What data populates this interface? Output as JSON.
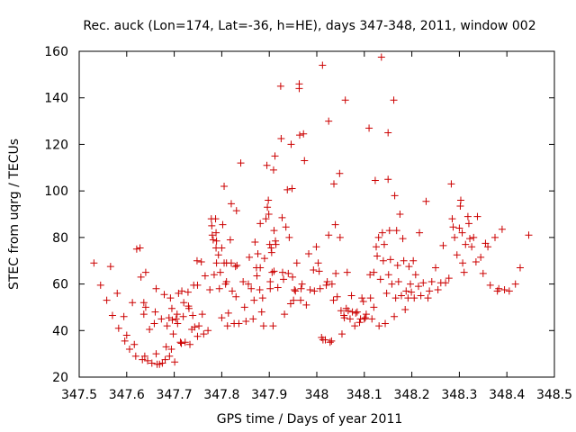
{
  "chart_data": {
    "type": "scatter",
    "title": "Rec. auck (Lon=174, Lat=-36, h=HE), days 347-348, 2011, window 002",
    "xlabel": "GPS time / Days of year 2011",
    "ylabel": "STEC from uqrg / TECUs",
    "xlim": [
      347.5,
      348.5
    ],
    "ylim": [
      20,
      160
    ],
    "x_ticks": [
      "347.5",
      "347.6",
      "347.7",
      "347.8",
      "347.9",
      "348",
      "348.1",
      "348.2",
      "348.3",
      "348.4",
      "348.5"
    ],
    "y_ticks": [
      "20",
      "40",
      "60",
      "80",
      "100",
      "120",
      "140",
      "160"
    ],
    "x_tick_values": [
      347.5,
      347.6,
      347.7,
      347.8,
      347.9,
      348.0,
      348.1,
      348.2,
      348.3,
      348.4,
      348.5
    ],
    "y_tick_values": [
      20,
      40,
      60,
      80,
      100,
      120,
      140,
      160
    ],
    "grid": false,
    "marker": "plus",
    "color": "#cc0000",
    "points": [
      [
        347.531,
        69
      ],
      [
        347.545,
        59.5
      ],
      [
        347.558,
        53
      ],
      [
        347.566,
        67.5
      ],
      [
        347.57,
        46.5
      ],
      [
        347.58,
        56
      ],
      [
        347.583,
        41
      ],
      [
        347.594,
        46
      ],
      [
        347.596,
        35.5
      ],
      [
        347.6,
        38
      ],
      [
        347.606,
        32
      ],
      [
        347.612,
        52
      ],
      [
        347.616,
        34
      ],
      [
        347.621,
        75
      ],
      [
        347.619,
        29
      ],
      [
        347.628,
        75.5
      ],
      [
        347.63,
        63
      ],
      [
        347.633,
        27.5
      ],
      [
        347.636,
        52
      ],
      [
        347.636,
        47
      ],
      [
        347.638,
        29
      ],
      [
        347.64,
        65
      ],
      [
        347.64,
        50
      ],
      [
        347.644,
        27
      ],
      [
        347.648,
        40.5
      ],
      [
        347.653,
        26
      ],
      [
        347.658,
        43
      ],
      [
        347.66,
        48
      ],
      [
        347.662,
        30
      ],
      [
        347.662,
        58
      ],
      [
        347.664,
        25.5
      ],
      [
        347.669,
        25.5
      ],
      [
        347.673,
        45
      ],
      [
        347.675,
        26
      ],
      [
        347.679,
        55.5
      ],
      [
        347.681,
        27.5
      ],
      [
        347.683,
        33
      ],
      [
        347.685,
        42
      ],
      [
        347.689,
        45.5
      ],
      [
        347.69,
        29
      ],
      [
        347.692,
        54
      ],
      [
        347.694,
        32
      ],
      [
        347.695,
        49.5
      ],
      [
        347.696,
        44.5
      ],
      [
        347.698,
        38.5
      ],
      [
        347.701,
        26.5
      ],
      [
        347.704,
        45
      ],
      [
        347.706,
        47
      ],
      [
        347.707,
        43
      ],
      [
        347.709,
        56
      ],
      [
        347.713,
        35
      ],
      [
        347.715,
        34.5
      ],
      [
        347.716,
        57
      ],
      [
        347.719,
        46
      ],
      [
        347.72,
        52
      ],
      [
        347.723,
        35
      ],
      [
        347.729,
        56.5
      ],
      [
        347.73,
        50.5
      ],
      [
        347.731,
        49.5
      ],
      [
        347.733,
        34
      ],
      [
        347.737,
        40.5
      ],
      [
        347.741,
        59.5
      ],
      [
        347.739,
        46.5
      ],
      [
        347.743,
        41.5
      ],
      [
        347.749,
        37.5
      ],
      [
        347.748,
        70
      ],
      [
        347.749,
        59.5
      ],
      [
        347.752,
        42
      ],
      [
        347.757,
        69.5
      ],
      [
        347.759,
        47
      ],
      [
        347.762,
        38.5
      ],
      [
        347.765,
        63.5
      ],
      [
        347.771,
        40
      ],
      [
        347.775,
        57.5
      ],
      [
        347.778,
        88
      ],
      [
        347.779,
        85
      ],
      [
        347.78,
        81
      ],
      [
        347.782,
        79
      ],
      [
        347.784,
        64
      ],
      [
        347.787,
        88
      ],
      [
        347.788,
        82
      ],
      [
        347.789,
        78.5
      ],
      [
        347.788,
        75.5
      ],
      [
        347.789,
        69
      ],
      [
        347.793,
        72.5
      ],
      [
        347.795,
        58
      ],
      [
        347.797,
        65
      ],
      [
        347.8,
        45.5
      ],
      [
        347.8,
        75.5
      ],
      [
        347.802,
        85.5
      ],
      [
        347.805,
        102
      ],
      [
        347.805,
        69
      ],
      [
        347.808,
        60
      ],
      [
        347.81,
        69
      ],
      [
        347.81,
        61
      ],
      [
        347.812,
        42
      ],
      [
        347.814,
        47.5
      ],
      [
        347.818,
        79
      ],
      [
        347.82,
        94.5
      ],
      [
        347.82,
        69
      ],
      [
        347.822,
        57
      ],
      [
        347.826,
        43
      ],
      [
        347.829,
        67.5
      ],
      [
        347.83,
        54.5
      ],
      [
        347.831,
        91.5
      ],
      [
        347.832,
        68
      ],
      [
        347.836,
        43
      ],
      [
        347.84,
        112
      ],
      [
        347.845,
        61
      ],
      [
        347.848,
        50
      ],
      [
        347.851,
        44
      ],
      [
        347.856,
        60
      ],
      [
        347.858,
        71.5
      ],
      [
        347.862,
        58
      ],
      [
        347.866,
        45
      ],
      [
        347.868,
        53
      ],
      [
        347.87,
        78
      ],
      [
        347.873,
        67
      ],
      [
        347.874,
        63.5
      ],
      [
        347.876,
        73
      ],
      [
        347.88,
        57.5
      ],
      [
        347.881,
        86
      ],
      [
        347.881,
        67
      ],
      [
        347.884,
        48
      ],
      [
        347.886,
        54
      ],
      [
        347.888,
        42
      ],
      [
        347.89,
        71
      ],
      [
        347.893,
        88
      ],
      [
        347.895,
        111
      ],
      [
        347.896,
        93
      ],
      [
        347.898,
        96
      ],
      [
        347.899,
        90
      ],
      [
        347.901,
        77
      ],
      [
        347.902,
        61
      ],
      [
        347.902,
        58
      ],
      [
        347.904,
        75.5
      ],
      [
        347.905,
        73.5
      ],
      [
        347.906,
        65
      ],
      [
        347.908,
        42
      ],
      [
        347.909,
        109
      ],
      [
        347.91,
        83
      ],
      [
        347.91,
        65.5
      ],
      [
        347.912,
        115
      ],
      [
        347.913,
        78.5
      ],
      [
        347.914,
        77
      ],
      [
        347.918,
        58.5
      ],
      [
        347.924,
        145
      ],
      [
        347.925,
        122.5
      ],
      [
        347.927,
        88.5
      ],
      [
        347.928,
        65
      ],
      [
        347.93,
        62
      ],
      [
        347.932,
        47
      ],
      [
        347.935,
        84.5
      ],
      [
        347.938,
        100.5
      ],
      [
        347.94,
        64.5
      ],
      [
        347.942,
        80
      ],
      [
        347.945,
        51.5
      ],
      [
        347.946,
        120
      ],
      [
        347.948,
        101
      ],
      [
        347.949,
        63
      ],
      [
        347.951,
        53
      ],
      [
        347.953,
        57.5
      ],
      [
        347.955,
        57
      ],
      [
        347.958,
        69
      ],
      [
        347.963,
        146
      ],
      [
        347.963,
        144
      ],
      [
        347.964,
        124
      ],
      [
        347.966,
        53
      ],
      [
        347.967,
        58
      ],
      [
        347.969,
        60
      ],
      [
        347.972,
        124.5
      ],
      [
        347.974,
        113
      ],
      [
        347.978,
        51
      ],
      [
        347.983,
        73
      ],
      [
        347.986,
        57.5
      ],
      [
        347.993,
        66
      ],
      [
        347.995,
        57
      ],
      [
        347.999,
        76
      ],
      [
        348.003,
        69
      ],
      [
        348.005,
        65.5
      ],
      [
        348.007,
        58
      ],
      [
        348.012,
        154
      ],
      [
        348.01,
        37
      ],
      [
        348.013,
        36
      ],
      [
        348.018,
        36
      ],
      [
        348.02,
        59.5
      ],
      [
        348.022,
        61
      ],
      [
        348.025,
        130
      ],
      [
        348.025,
        81
      ],
      [
        348.028,
        35
      ],
      [
        348.031,
        35.5
      ],
      [
        348.032,
        60
      ],
      [
        348.035,
        53
      ],
      [
        348.036,
        103
      ],
      [
        348.039,
        85.5
      ],
      [
        348.04,
        64.5
      ],
      [
        348.043,
        54.5
      ],
      [
        348.048,
        107.5
      ],
      [
        348.049,
        80
      ],
      [
        348.053,
        38.5
      ],
      [
        348.051,
        48.5
      ],
      [
        348.057,
        46.5
      ],
      [
        348.058,
        45.5
      ],
      [
        348.06,
        139
      ],
      [
        348.062,
        49.5
      ],
      [
        348.064,
        65
      ],
      [
        348.066,
        48.5
      ],
      [
        348.07,
        45
      ],
      [
        348.073,
        55
      ],
      [
        348.075,
        48
      ],
      [
        348.08,
        42
      ],
      [
        348.082,
        47.5
      ],
      [
        348.085,
        48
      ],
      [
        348.09,
        43.5
      ],
      [
        348.092,
        45
      ],
      [
        348.095,
        54
      ],
      [
        348.098,
        52.5
      ],
      [
        348.1,
        45
      ],
      [
        348.102,
        45.5
      ],
      [
        348.104,
        47
      ],
      [
        348.11,
        127
      ],
      [
        348.112,
        64
      ],
      [
        348.113,
        54
      ],
      [
        348.116,
        45
      ],
      [
        348.12,
        50
      ],
      [
        348.12,
        65
      ],
      [
        348.123,
        104.5
      ],
      [
        348.125,
        76
      ],
      [
        348.127,
        72
      ],
      [
        348.13,
        80
      ],
      [
        348.131,
        42
      ],
      [
        348.134,
        62
      ],
      [
        348.136,
        157.5
      ],
      [
        348.138,
        82
      ],
      [
        348.14,
        70
      ],
      [
        348.142,
        77
      ],
      [
        348.144,
        43
      ],
      [
        348.147,
        56
      ],
      [
        348.15,
        105
      ],
      [
        348.15,
        125
      ],
      [
        348.151,
        64
      ],
      [
        348.153,
        83
      ],
      [
        348.155,
        70.5
      ],
      [
        348.158,
        60
      ],
      [
        348.162,
        139
      ],
      [
        348.164,
        98
      ],
      [
        348.163,
        46
      ],
      [
        348.166,
        54
      ],
      [
        348.168,
        83
      ],
      [
        348.17,
        68
      ],
      [
        348.172,
        61
      ],
      [
        348.175,
        90
      ],
      [
        348.178,
        55
      ],
      [
        348.181,
        79.5
      ],
      [
        348.183,
        70
      ],
      [
        348.186,
        49
      ],
      [
        348.188,
        57
      ],
      [
        348.192,
        54
      ],
      [
        348.194,
        67.5
      ],
      [
        348.197,
        60
      ],
      [
        348.199,
        56.5
      ],
      [
        348.203,
        70
      ],
      [
        348.205,
        54
      ],
      [
        348.208,
        64
      ],
      [
        348.214,
        59
      ],
      [
        348.216,
        82
      ],
      [
        348.219,
        55
      ],
      [
        348.224,
        60.5
      ],
      [
        348.23,
        95.5
      ],
      [
        348.234,
        54
      ],
      [
        348.237,
        57
      ],
      [
        348.242,
        61
      ],
      [
        348.25,
        67
      ],
      [
        348.255,
        57.5
      ],
      [
        348.261,
        60.5
      ],
      [
        348.266,
        76.5
      ],
      [
        348.271,
        60.5
      ],
      [
        348.278,
        62.5
      ],
      [
        348.283,
        103
      ],
      [
        348.285,
        88
      ],
      [
        348.287,
        84.5
      ],
      [
        348.29,
        80
      ],
      [
        348.295,
        72.5
      ],
      [
        348.3,
        84
      ],
      [
        348.302,
        93.5
      ],
      [
        348.303,
        96
      ],
      [
        348.306,
        82
      ],
      [
        348.307,
        69
      ],
      [
        348.31,
        65
      ],
      [
        348.313,
        77
      ],
      [
        348.318,
        89
      ],
      [
        348.32,
        86
      ],
      [
        348.322,
        79.5
      ],
      [
        348.326,
        76
      ],
      [
        348.33,
        80
      ],
      [
        348.335,
        69.5
      ],
      [
        348.338,
        89
      ],
      [
        348.345,
        71.5
      ],
      [
        348.35,
        64.5
      ],
      [
        348.355,
        77.5
      ],
      [
        348.36,
        76
      ],
      [
        348.365,
        59.5
      ],
      [
        348.375,
        80
      ],
      [
        348.38,
        57
      ],
      [
        348.383,
        58
      ],
      [
        348.39,
        83.5
      ],
      [
        348.395,
        57.5
      ],
      [
        348.405,
        57
      ],
      [
        348.418,
        60
      ],
      [
        348.428,
        67
      ],
      [
        348.446,
        81
      ]
    ]
  }
}
